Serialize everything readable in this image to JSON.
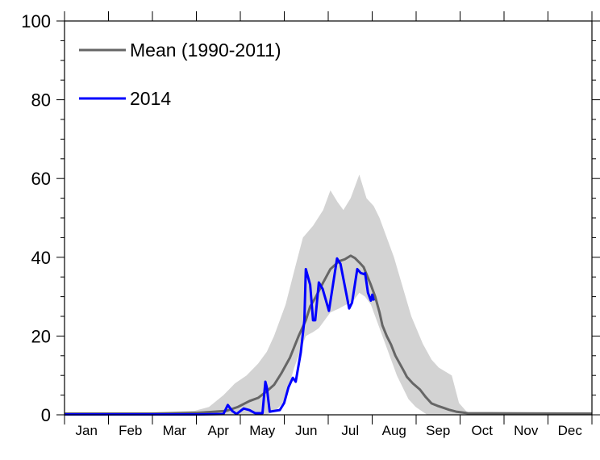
{
  "chart_data": {
    "type": "line",
    "title": "",
    "xlabel": "",
    "ylabel": "",
    "xlim": [
      0,
      365
    ],
    "ylim": [
      0,
      100
    ],
    "x_unit": "day of year",
    "yticks": [
      0,
      20,
      40,
      60,
      80,
      100
    ],
    "yticks_minor_step": 5,
    "months": [
      "Jan",
      "Feb",
      "Mar",
      "Apr",
      "May",
      "Jun",
      "Jul",
      "Aug",
      "Sep",
      "Oct",
      "Nov",
      "Dec"
    ],
    "legend_position": "top-left",
    "grid": false,
    "band": {
      "name": "Mean range (1990-2011)",
      "color": "#d3d3d3",
      "upper": [
        [
          0,
          0.6
        ],
        [
          60,
          0.6
        ],
        [
          90,
          1
        ],
        [
          100,
          2
        ],
        [
          110,
          5
        ],
        [
          118,
          8
        ],
        [
          126,
          10
        ],
        [
          134,
          13
        ],
        [
          140,
          16
        ],
        [
          145,
          20
        ],
        [
          153,
          28
        ],
        [
          160,
          38
        ],
        [
          165,
          45
        ],
        [
          172,
          48
        ],
        [
          179,
          52
        ],
        [
          184,
          57
        ],
        [
          189,
          54
        ],
        [
          193,
          52
        ],
        [
          198,
          55
        ],
        [
          204,
          61
        ],
        [
          209,
          55
        ],
        [
          214,
          53
        ],
        [
          218,
          50
        ],
        [
          223,
          45
        ],
        [
          228,
          40
        ],
        [
          232,
          35
        ],
        [
          236,
          30
        ],
        [
          240,
          25
        ],
        [
          248,
          18
        ],
        [
          254,
          14
        ],
        [
          259,
          12
        ],
        [
          268,
          10
        ],
        [
          273,
          3
        ],
        [
          279,
          0.5
        ],
        [
          365,
          0.5
        ]
      ],
      "lower": [
        [
          0,
          0
        ],
        [
          140,
          0
        ],
        [
          146,
          1
        ],
        [
          151,
          3
        ],
        [
          155,
          7
        ],
        [
          159,
          12
        ],
        [
          163,
          16
        ],
        [
          167,
          20
        ],
        [
          172,
          21
        ],
        [
          176,
          22
        ],
        [
          180,
          24
        ],
        [
          184,
          26
        ],
        [
          190,
          27
        ],
        [
          195,
          28
        ],
        [
          200,
          29
        ],
        [
          204,
          31
        ],
        [
          208,
          30
        ],
        [
          212,
          28
        ],
        [
          215,
          25
        ],
        [
          218,
          22
        ],
        [
          222,
          18
        ],
        [
          226,
          14
        ],
        [
          230,
          10
        ],
        [
          234,
          7
        ],
        [
          238,
          4
        ],
        [
          243,
          2
        ],
        [
          251,
          0
        ],
        [
          365,
          0
        ]
      ]
    },
    "series": [
      {
        "name": "Mean (1990-2011)",
        "color": "#666666",
        "points": [
          [
            0,
            0.3
          ],
          [
            60,
            0.3
          ],
          [
            91,
            0.5
          ],
          [
            100,
            0.7
          ],
          [
            112,
            1
          ],
          [
            120,
            2
          ],
          [
            128,
            3.5
          ],
          [
            134,
            4.3
          ],
          [
            140,
            6
          ],
          [
            145,
            7.6
          ],
          [
            150,
            10.5
          ],
          [
            156,
            14.5
          ],
          [
            162,
            20
          ],
          [
            167,
            24
          ],
          [
            170,
            27.5
          ],
          [
            174,
            30
          ],
          [
            179,
            33.6
          ],
          [
            184,
            37
          ],
          [
            190,
            39
          ],
          [
            194,
            39.5
          ],
          [
            198,
            40.4
          ],
          [
            201,
            39.8
          ],
          [
            204,
            38.7
          ],
          [
            207,
            37.5
          ],
          [
            209,
            35.7
          ],
          [
            212,
            33
          ],
          [
            215,
            30
          ],
          [
            218,
            26
          ],
          [
            220,
            22.7
          ],
          [
            223,
            20
          ],
          [
            226,
            17.8
          ],
          [
            229,
            15
          ],
          [
            232,
            13
          ],
          [
            235,
            11
          ],
          [
            237,
            9.6
          ],
          [
            241,
            8
          ],
          [
            246,
            6.4
          ],
          [
            250,
            4.5
          ],
          [
            254,
            2.9
          ],
          [
            258,
            2.3
          ],
          [
            262,
            1.8
          ],
          [
            266,
            1.3
          ],
          [
            271,
            0.8
          ],
          [
            279,
            0.4
          ],
          [
            365,
            0.3
          ]
        ]
      },
      {
        "name": "2014",
        "color": "#0000ff",
        "points": [
          [
            0,
            0.1
          ],
          [
            90,
            0.1
          ],
          [
            110,
            0.2
          ],
          [
            113,
            2.5
          ],
          [
            116,
            1
          ],
          [
            119,
            0.2
          ],
          [
            124,
            1.6
          ],
          [
            128,
            1.2
          ],
          [
            132,
            0.4
          ],
          [
            137,
            0.4
          ],
          [
            139,
            8.4
          ],
          [
            140,
            7
          ],
          [
            142,
            0.8
          ],
          [
            149,
            1.2
          ],
          [
            152,
            3
          ],
          [
            155,
            7
          ],
          [
            158,
            9.4
          ],
          [
            160,
            8.4
          ],
          [
            163.5,
            15.8
          ],
          [
            166,
            24
          ],
          [
            167,
            37
          ],
          [
            170,
            33
          ],
          [
            172,
            24
          ],
          [
            173.5,
            24
          ],
          [
            176,
            33.6
          ],
          [
            178.6,
            32
          ],
          [
            183,
            26.4
          ],
          [
            188.6,
            39.7
          ],
          [
            191,
            38.3
          ],
          [
            197,
            27
          ],
          [
            199,
            28.5
          ],
          [
            202.6,
            37
          ],
          [
            205,
            36
          ],
          [
            207.6,
            35.7
          ],
          [
            208,
            36
          ],
          [
            210,
            31
          ],
          [
            212,
            29
          ],
          [
            213,
            30.5
          ],
          [
            214,
            29
          ]
        ]
      }
    ]
  }
}
